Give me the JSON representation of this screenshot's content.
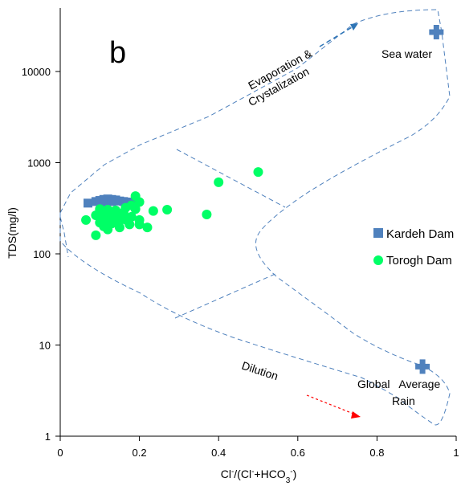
{
  "chart_data": {
    "type": "scatter",
    "title": "",
    "panel_label": "b",
    "xlabel": {
      "base": "Cl",
      "sup1": "-",
      "mid": "/(Cl",
      "sup2": "-",
      "mid2": "+HCO",
      "sub": "3",
      "sup3": "-",
      "end": ")"
    },
    "ylabel": "TDS(mg/l)",
    "x_range": [
      0,
      1
    ],
    "y_range": [
      1,
      50000
    ],
    "y_scale": "log",
    "x_ticks": [
      "0",
      "0.2",
      "0.4",
      "0.6",
      "0.8",
      "1"
    ],
    "y_ticks": [
      "1",
      "10",
      "100",
      "1000",
      "10000"
    ],
    "grid": false,
    "legend_position": "right",
    "series": [
      {
        "name": "Kardeh Dam",
        "marker": "square",
        "color": "#4f81bd",
        "points": [
          [
            0.07,
            360
          ],
          [
            0.09,
            375
          ],
          [
            0.1,
            385
          ],
          [
            0.11,
            395
          ],
          [
            0.12,
            400
          ],
          [
            0.13,
            395
          ],
          [
            0.14,
            390
          ],
          [
            0.15,
            380
          ],
          [
            0.16,
            375
          ],
          [
            0.17,
            370
          ],
          [
            0.18,
            365
          ],
          [
            0.11,
            370
          ],
          [
            0.13,
            375
          ]
        ]
      },
      {
        "name": "Torogh Dam",
        "marker": "circle",
        "color": "#00ff66",
        "points": [
          [
            0.065,
            235
          ],
          [
            0.09,
            160
          ],
          [
            0.09,
            265
          ],
          [
            0.1,
            290
          ],
          [
            0.1,
            220
          ],
          [
            0.11,
            200
          ],
          [
            0.11,
            255
          ],
          [
            0.12,
            185
          ],
          [
            0.12,
            240
          ],
          [
            0.13,
            270
          ],
          [
            0.13,
            215
          ],
          [
            0.14,
            300
          ],
          [
            0.14,
            230
          ],
          [
            0.15,
            195
          ],
          [
            0.15,
            260
          ],
          [
            0.16,
            240
          ],
          [
            0.16,
            285
          ],
          [
            0.17,
            230
          ],
          [
            0.18,
            255
          ],
          [
            0.18,
            340
          ],
          [
            0.19,
            430
          ],
          [
            0.19,
            310
          ],
          [
            0.2,
            235
          ],
          [
            0.2,
            370
          ],
          [
            0.2,
            210
          ],
          [
            0.22,
            195
          ],
          [
            0.235,
            295
          ],
          [
            0.27,
            305
          ],
          [
            0.37,
            270
          ],
          [
            0.4,
            610
          ],
          [
            0.5,
            790
          ],
          [
            0.1,
            310
          ],
          [
            0.11,
            230
          ],
          [
            0.12,
            305
          ],
          [
            0.14,
            260
          ],
          [
            0.165,
            320
          ],
          [
            0.175,
            210
          ]
        ]
      }
    ],
    "special_markers": [
      {
        "name": "Sea water",
        "marker": "cross",
        "color": "#4f81bd",
        "x": 0.95,
        "y": 27000
      },
      {
        "name": "Global Average Rain",
        "marker": "cross",
        "color": "#4f81bd",
        "x": 0.915,
        "y": 5.8
      }
    ],
    "annotations": {
      "evaporation_line1": "Evaporation &",
      "evaporation_line2": "Crystalization",
      "sea_water": "Sea water",
      "dilution": "Dilution",
      "rain_line1": "Global   Average",
      "rain_line2": "Rain"
    },
    "envelope_color": "#4f81bd",
    "evaporation_arrow_color": "#2e75b6",
    "dilution_arrow_color": "#ff0000"
  }
}
